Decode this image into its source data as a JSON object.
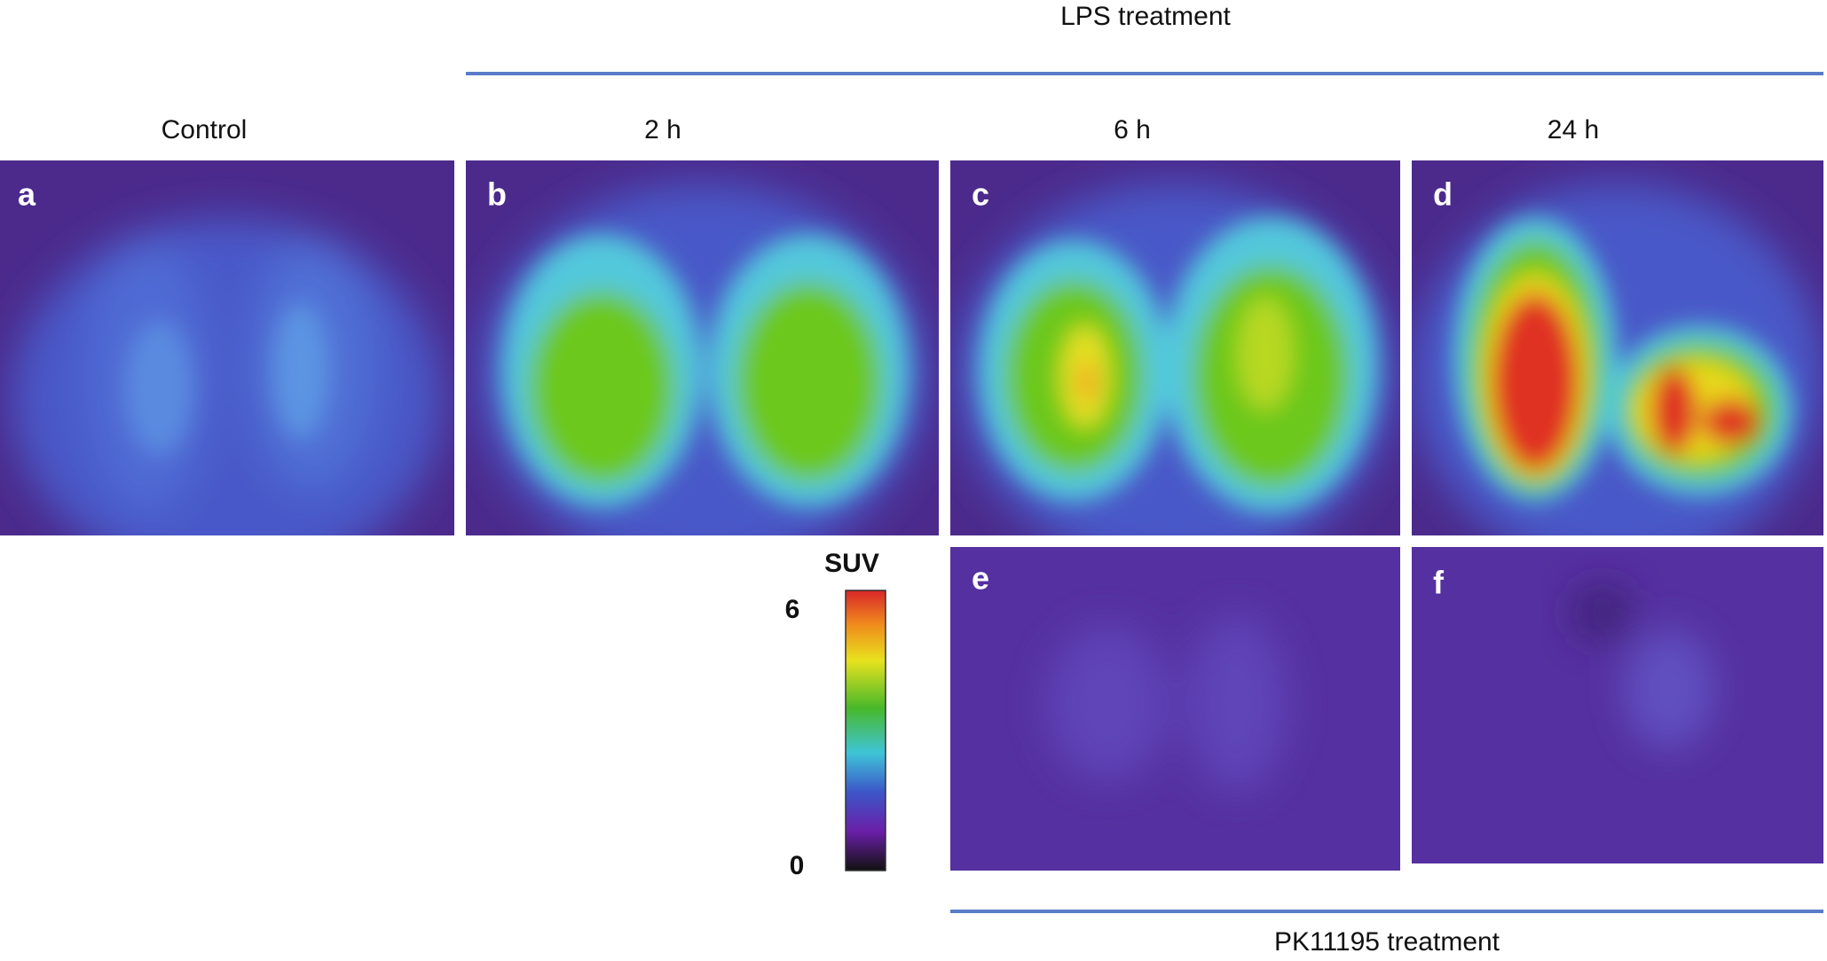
{
  "header": {
    "title": "LPS treatment"
  },
  "columns": [
    "Control",
    "2 h",
    "6 h",
    "24 h"
  ],
  "panels": [
    "a",
    "b",
    "c",
    "d",
    "e",
    "f"
  ],
  "colorbar": {
    "label": "SUV",
    "max": 6,
    "min": 0
  },
  "footer": {
    "title": "PK11195 treatment"
  }
}
